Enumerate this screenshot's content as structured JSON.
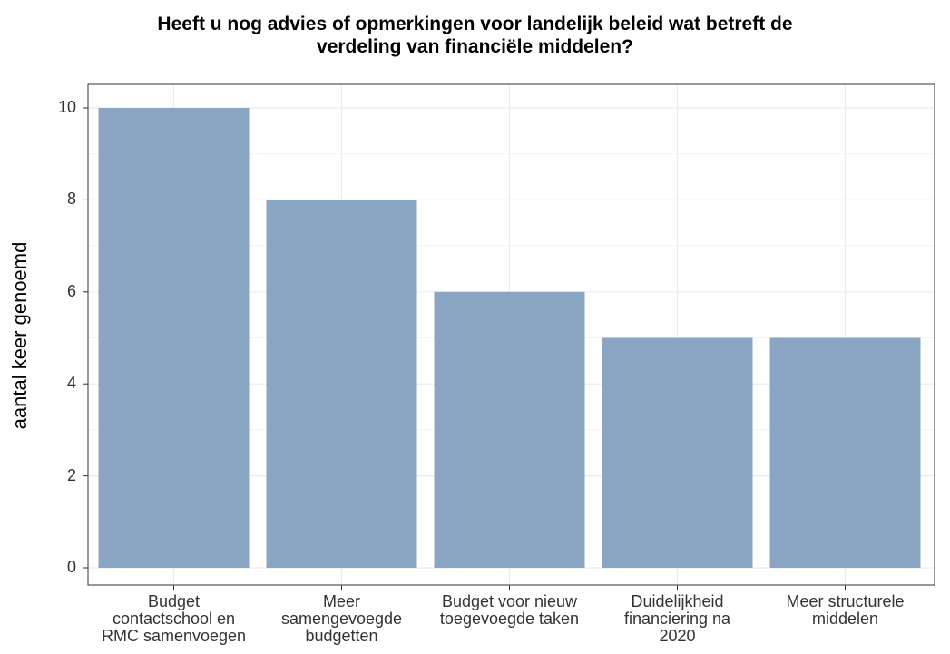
{
  "chart_data": {
    "type": "bar",
    "title": [
      "Heeft u nog advies of opmerkingen voor landelijk beleid wat betreft de",
      "verdeling van financiële middelen?"
    ],
    "ylabel": "aantal keer genoemd",
    "xlabel": "",
    "categories": [
      [
        "Budget",
        "contactschool en",
        "RMC samenvoegen"
      ],
      [
        "Meer",
        "samengevoegde",
        "budgetten"
      ],
      [
        "Budget voor nieuw",
        "toegevoegde taken"
      ],
      [
        "Duidelijkheid",
        "financiering na",
        "2020"
      ],
      [
        "Meer structurele",
        "middelen"
      ]
    ],
    "values": [
      10,
      8,
      6,
      5,
      5
    ],
    "ylim": [
      0,
      10
    ],
    "yticks": [
      0,
      2,
      4,
      6,
      8,
      10
    ],
    "grid": true,
    "colors": {
      "bar": "#89a5c2",
      "grid": "#ebebeb",
      "border": "#333333"
    }
  }
}
